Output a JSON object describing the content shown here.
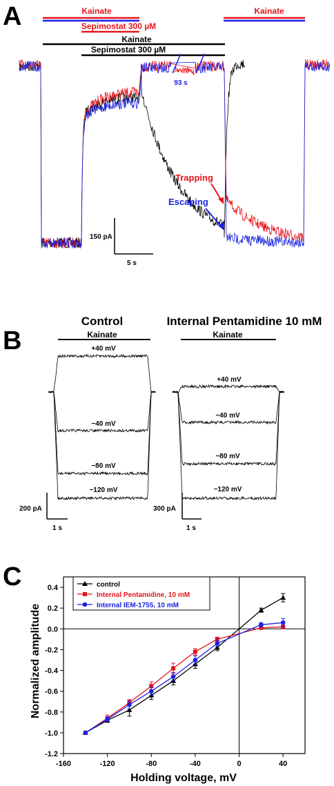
{
  "panels": {
    "a": "A",
    "b": "B",
    "c": "C"
  },
  "panelA": {
    "bar_red_kainate_1": "Kainate",
    "bar_red_sepimostat": "Sepimostat  300 µM",
    "bar_black_kainate": "Kainate",
    "bar_black_sepimostat": "Sepimostat  300 µM",
    "bar_red_kainate_2": "Kainate",
    "gap_label": "93 s",
    "trapping_label": "Trapping",
    "escaping_label": "Escaping",
    "scale_current": "150 pA",
    "scale_time": "5 s",
    "colors": {
      "red": "#e8141b",
      "blue": "#1b22e0",
      "black": "#000000"
    }
  },
  "panelB": {
    "left": {
      "title": "Control",
      "bar_label": "Kainate",
      "voltages": [
        "+40 mV",
        "−40 mV",
        "−80 mV",
        "−120 mV"
      ],
      "scale_current": "200 pA",
      "scale_time": "1 s"
    },
    "right": {
      "title": "Internal Pentamidine 10 mM",
      "bar_label": "Kainate",
      "voltages": [
        "+40 mV",
        "−40 mV",
        "−80 mV",
        "−120 mV"
      ],
      "scale_current": "300 pA",
      "scale_time": "1 s"
    }
  },
  "chart_data": {
    "type": "line",
    "xlabel": "Holding voltage, mV",
    "ylabel": "Normalized amplitude",
    "xlim": [
      -160,
      60
    ],
    "ylim": [
      -1.2,
      0.5
    ],
    "xticks": [
      -160,
      -120,
      -80,
      -40,
      0,
      40
    ],
    "yticks": [
      -1.2,
      -1.0,
      -0.8,
      -0.6,
      -0.4,
      -0.2,
      0.0,
      0.2,
      0.4
    ],
    "ytick_labels": [
      "-1.2",
      "-1.0",
      "-0.8",
      "-0.6",
      "-0.4",
      "-0.2",
      "0.0",
      "0.2",
      "0.4"
    ],
    "legend_position": "top-left",
    "series": [
      {
        "name": "control",
        "color": "#000000",
        "marker": "triangle",
        "x": [
          -140,
          -120,
          -100,
          -80,
          -60,
          -40,
          -20,
          20,
          40
        ],
        "y": [
          -1.0,
          -0.88,
          -0.78,
          -0.64,
          -0.5,
          -0.34,
          -0.18,
          0.18,
          0.3
        ],
        "err": [
          0,
          0.02,
          0.06,
          0.04,
          0.04,
          0.04,
          0.03,
          0.02,
          0.04
        ]
      },
      {
        "name": "Internal Pentamidine, 10 mM",
        "color": "#e8141b",
        "marker": "square",
        "x": [
          -140,
          -120,
          -100,
          -80,
          -60,
          -40,
          -20,
          20,
          40
        ],
        "y": [
          -1.0,
          -0.86,
          -0.71,
          -0.55,
          -0.38,
          -0.22,
          -0.1,
          0.01,
          0.02
        ],
        "err": [
          0,
          0.03,
          0.03,
          0.04,
          0.05,
          0.03,
          0.02,
          0.01,
          0.01
        ]
      },
      {
        "name": "Internal IEM-1755, 10 mM",
        "color": "#1b22e0",
        "marker": "circle",
        "x": [
          -140,
          -120,
          -100,
          -80,
          -60,
          -40,
          -20,
          20,
          40
        ],
        "y": [
          -1.0,
          -0.87,
          -0.73,
          -0.6,
          -0.46,
          -0.3,
          -0.14,
          0.04,
          0.06
        ],
        "err": [
          0,
          0.02,
          0.04,
          0.04,
          0.04,
          0.04,
          0.03,
          0.02,
          0.04
        ]
      }
    ]
  }
}
